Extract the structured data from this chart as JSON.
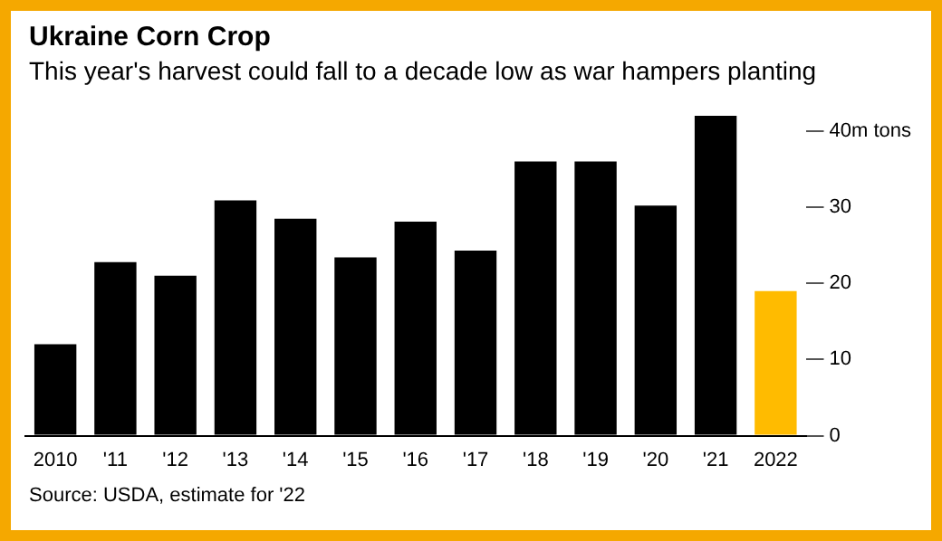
{
  "chart_data": {
    "type": "bar",
    "title": "Ukraine Corn Crop",
    "subtitle": "This year's harvest could fall to a decade low as war hampers planting",
    "categories": [
      "2010",
      "'11",
      "'12",
      "'13",
      "'14",
      "'15",
      "'16",
      "'17",
      "'18",
      "'19",
      "'20",
      "'21",
      "2022"
    ],
    "values": [
      12.0,
      22.8,
      21.0,
      30.9,
      28.5,
      23.4,
      28.1,
      24.3,
      36.0,
      36.0,
      30.2,
      42.0,
      19.0
    ],
    "colors": [
      "#000000",
      "#000000",
      "#000000",
      "#000000",
      "#000000",
      "#000000",
      "#000000",
      "#000000",
      "#000000",
      "#000000",
      "#000000",
      "#000000",
      "#ffbb00"
    ],
    "ylim": [
      0,
      42
    ],
    "yticks": [
      0,
      10,
      20,
      30,
      {
        "value": 40,
        "label": "40m tons"
      }
    ],
    "grid": false,
    "annotations": [
      "Source: USDA, estimate for '22"
    ]
  }
}
